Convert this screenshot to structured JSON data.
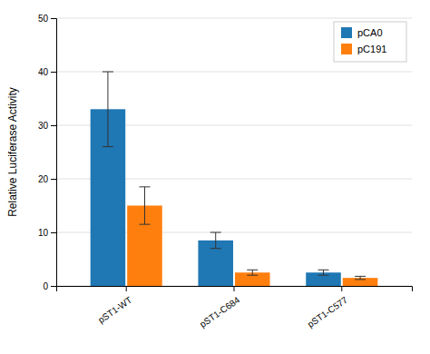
{
  "chart_data": {
    "type": "bar",
    "ylabel": "Relative Luciferase Activity",
    "categories": [
      "pST1-WT",
      "pST1-C684",
      "pST1-C577"
    ],
    "series": [
      {
        "name": "pCA0",
        "values": [
          33,
          8.5,
          2.5
        ],
        "errors": [
          7,
          1.5,
          0.5
        ]
      },
      {
        "name": "pC191",
        "values": [
          15,
          2.5,
          1.5
        ],
        "errors": [
          3.5,
          0.5,
          0.3
        ]
      }
    ],
    "ylim": [
      0,
      50
    ],
    "yticks": [
      0,
      10,
      20,
      30,
      40,
      50
    ],
    "grid": true,
    "legend": "upper right"
  }
}
